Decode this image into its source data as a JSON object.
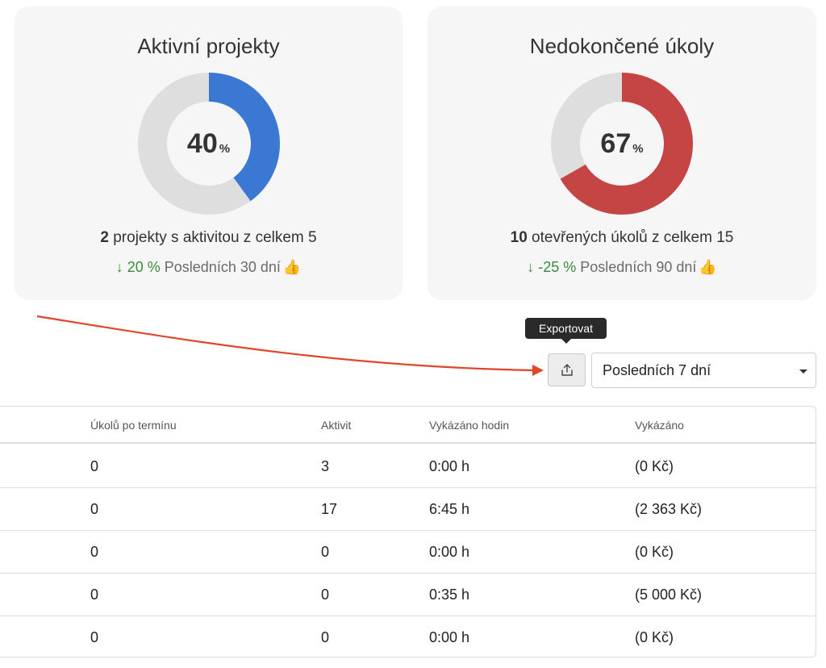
{
  "cards": [
    {
      "title": "Aktivní projekty",
      "percent": "40",
      "percent_sign": "%",
      "fraction": 0.4,
      "color": "#3a78d4",
      "track_color": "#dedede",
      "summary_count": "2",
      "summary_text": " projekty s aktivitou z celkem 5",
      "trend_arrow": "↓",
      "trend_delta": "20 %",
      "trend_period": "Posledních 30 dní",
      "trend_emoji": "👍"
    },
    {
      "title": "Nedokončené úkoly",
      "percent": "67",
      "percent_sign": "%",
      "fraction": 0.667,
      "color": "#c54545",
      "track_color": "#dedede",
      "summary_count": "10",
      "summary_text": " otevřených úkolů z celkem 15",
      "trend_arrow": "↓",
      "trend_delta": "-25 %",
      "trend_period": "Posledních 90 dní",
      "trend_emoji": "👍"
    }
  ],
  "toolbar": {
    "export_tooltip": "Exportovat",
    "export_icon": "upload-icon",
    "period_value": "Posledních 7 dní"
  },
  "table": {
    "headers": [
      "Úkolů po termínu",
      "Aktivit",
      "Vykázáno hodin",
      "Vykázáno"
    ],
    "rows": [
      [
        "0",
        "3",
        "0:00 h",
        "(0 Kč)"
      ],
      [
        "0",
        "17",
        "6:45 h",
        "(2 363 Kč)"
      ],
      [
        "0",
        "0",
        "0:00 h",
        "(0 Kč)"
      ],
      [
        "0",
        "0",
        "0:35 h",
        "(5 000 Kč)"
      ],
      [
        "0",
        "0",
        "0:00 h",
        "(0 Kč)"
      ]
    ]
  },
  "annotation_color": "#e0452a"
}
